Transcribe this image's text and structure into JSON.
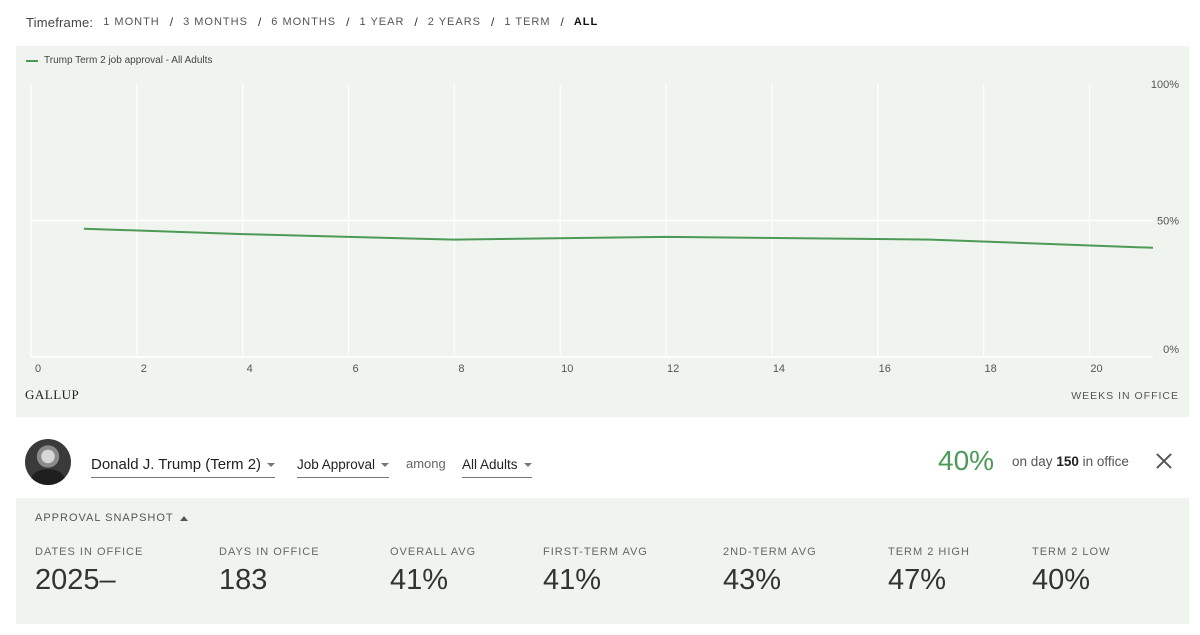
{
  "timeframe": {
    "label": "Timeframe:",
    "options": [
      "1 MONTH",
      "3 MONTHS",
      "6 MONTHS",
      "1 YEAR",
      "2 YEARS",
      "1 TERM",
      "ALL"
    ],
    "selected": "ALL"
  },
  "chart_data": {
    "type": "line",
    "series": [
      {
        "name": "Trump Term 2 job approval - All Adults",
        "color": "#4d9a57",
        "x": [
          1,
          4,
          8,
          12,
          17,
          21.2
        ],
        "y": [
          47,
          45,
          43,
          44,
          43,
          40
        ]
      }
    ],
    "x_ticks": [
      0,
      2,
      4,
      6,
      8,
      10,
      12,
      14,
      16,
      18,
      20
    ],
    "x_range": [
      0,
      21.2
    ],
    "y_ticks": [
      "100%",
      "50%",
      "0%"
    ],
    "y_range": [
      0,
      100
    ],
    "xlabel": "WEEKS IN OFFICE",
    "grid": true,
    "legend_position": "top-left"
  },
  "brand": "GALLUP",
  "selector": {
    "person": "Donald J. Trump (Term 2)",
    "measure": "Job Approval",
    "among_label": "among",
    "group": "All Adults",
    "current_value": "40%",
    "caption_prefix": "on day",
    "caption_day": "150",
    "caption_suffix": "in office"
  },
  "snapshot": {
    "toggle_label": "APPROVAL SNAPSHOT",
    "stats": [
      {
        "label": "DATES IN OFFICE",
        "value": "2025–"
      },
      {
        "label": "DAYS IN OFFICE",
        "value": "183"
      },
      {
        "label": "OVERALL AVG",
        "value": "41%"
      },
      {
        "label": "FIRST-TERM AVG",
        "value": "41%"
      },
      {
        "label": "2ND-TERM AVG",
        "value": "43%"
      },
      {
        "label": "TERM 2 HIGH",
        "value": "47%"
      },
      {
        "label": "TERM 2 LOW",
        "value": "40%"
      }
    ]
  },
  "colors": {
    "accent": "#4d9a57",
    "panel_bg": "#eff5ee"
  },
  "icons": [
    "caret-down-icon",
    "caret-up-icon",
    "close-icon",
    "avatar"
  ]
}
